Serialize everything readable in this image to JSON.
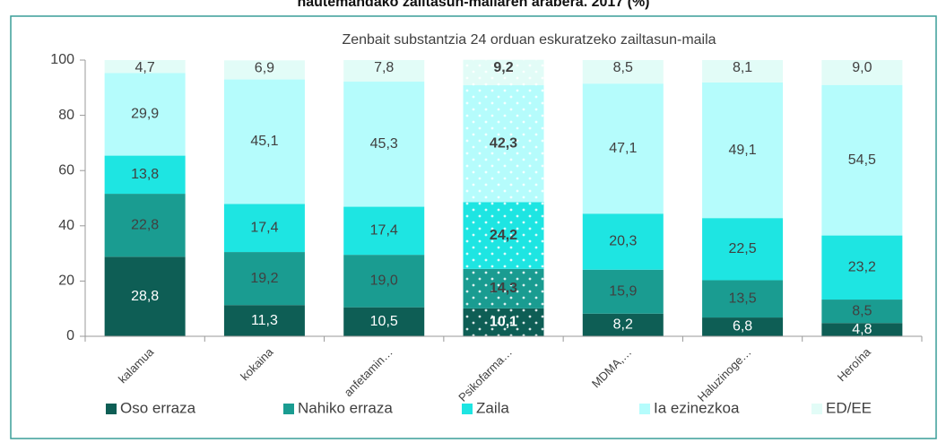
{
  "chart_data": {
    "type": "stacked_bar",
    "title": "hautemandako zailtasun-mailaren arabera. 2017 (%)",
    "subtitle": "Zenbait substantzia 24 orduan eskuratzeko zailtasun-maila",
    "categories": [
      "kalamua",
      "kokaina",
      "anfetamin…",
      "Psikofarma…",
      "MDMA,…",
      "Haluzinoge…",
      "Heroína"
    ],
    "series": [
      {
        "name": "Oso erraza",
        "color": "#0e5e55",
        "values": [
          28.8,
          11.3,
          10.5,
          10.1,
          8.2,
          6.8,
          4.8
        ],
        "value_labels": [
          "28,8",
          "11,3",
          "10,5",
          "10,1",
          "8,2",
          "6,8",
          "4,8"
        ]
      },
      {
        "name": "Nahiko erraza",
        "color": "#1a9c91",
        "values": [
          22.8,
          19.2,
          19.0,
          14.3,
          15.9,
          13.5,
          8.5
        ],
        "value_labels": [
          "22,8",
          "19,2",
          "19,0",
          "14,3",
          "15,9",
          "13,5",
          "8,5"
        ]
      },
      {
        "name": "Zaila",
        "color": "#1ee5e2",
        "values": [
          13.8,
          17.4,
          17.4,
          24.2,
          20.3,
          22.5,
          23.2
        ],
        "value_labels": [
          "13,8",
          "17,4",
          "17,4",
          "24,2",
          "20,3",
          "22,5",
          "23,2"
        ]
      },
      {
        "name": "Ia ezinezkoa",
        "color": "#b5fcfc",
        "values": [
          29.9,
          45.1,
          45.3,
          42.3,
          47.1,
          49.1,
          54.5
        ],
        "value_labels": [
          "29,9",
          "45,1",
          "45,3",
          "42,3",
          "47,1",
          "49,1",
          "54,5"
        ]
      },
      {
        "name": "ED/EE",
        "color": "#e2fcf7",
        "values": [
          4.7,
          6.9,
          7.8,
          9.2,
          8.5,
          8.1,
          9.0
        ],
        "value_labels": [
          "4,7",
          "6,9",
          "7,8",
          "9,2",
          "8,5",
          "8,1",
          "9,0"
        ]
      }
    ],
    "ylim": [
      0,
      100
    ],
    "yticks": [
      0,
      20,
      40,
      60,
      80,
      100
    ],
    "grid": false,
    "legend": "bottom",
    "highlight_category": 3
  }
}
